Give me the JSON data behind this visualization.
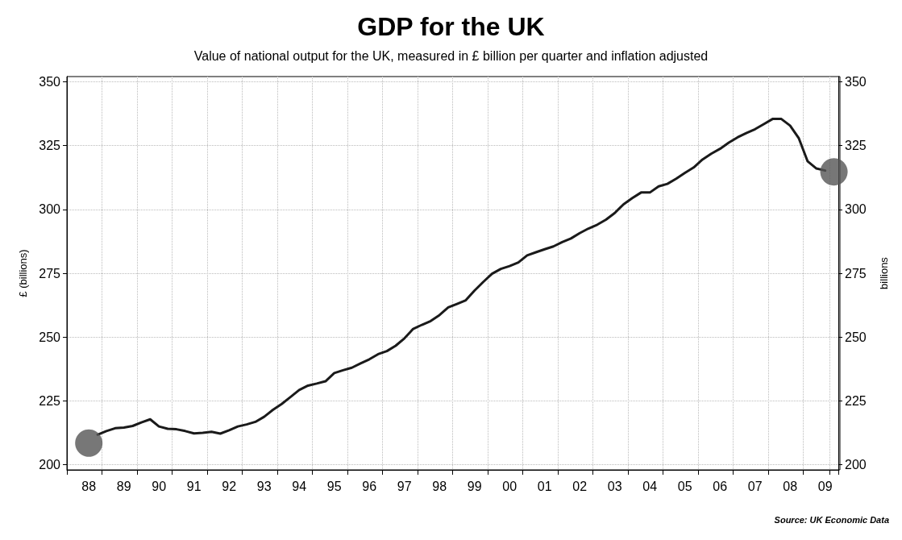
{
  "chart_data": {
    "type": "line",
    "title": "GDP for the UK",
    "subtitle": "Value of national output for the UK, measured in £ billion per quarter and inflation adjusted",
    "ylabel": "£ (billions)",
    "y2label": "billions",
    "annotations": [
      "Source: UK Economic Data"
    ],
    "categories": [
      null,
      null,
      "88",
      null,
      null,
      null,
      "89",
      null,
      null,
      null,
      "90",
      null,
      null,
      null,
      "91",
      null,
      null,
      null,
      "92",
      null,
      null,
      null,
      "93",
      null,
      null,
      null,
      "94",
      null,
      null,
      null,
      "95",
      null,
      null,
      null,
      "96",
      null,
      null,
      null,
      "97",
      null,
      null,
      null,
      "98",
      null,
      null,
      null,
      "99",
      null,
      null,
      null,
      "00",
      null,
      null,
      null,
      "01",
      null,
      null,
      null,
      "02",
      null,
      null,
      null,
      "03",
      null,
      null,
      null,
      "04",
      null,
      null,
      null,
      "05",
      null,
      null,
      null,
      "06",
      null,
      null,
      null,
      "07",
      null,
      null,
      null,
      "08",
      null,
      null,
      null,
      "09",
      null
    ],
    "ylim": [
      198,
      352
    ],
    "yticks": [
      200,
      225,
      250,
      275,
      300,
      325,
      350
    ],
    "y2lim": [
      198,
      352
    ],
    "y2ticks": [
      200,
      225,
      250,
      275,
      300,
      325,
      350
    ],
    "grid": true,
    "line_style": "solid",
    "series": [
      {
        "color": "#1a1a1a",
        "marker": "none",
        "values": [
          null,
          null,
          null,
          211.8,
          213.2,
          214.3,
          214.6,
          215.2,
          216.6,
          217.8,
          215,
          214.1,
          213.9,
          213.2,
          212.3,
          212.5,
          212.9,
          212.2,
          213.5,
          215,
          215.8,
          216.8,
          218.8,
          221.5,
          223.8,
          226.5,
          229.3,
          231,
          231.8,
          232.7,
          235.9,
          237,
          238,
          239.7,
          241.3,
          243.3,
          244.5,
          246.6,
          249.5,
          253.2,
          254.8,
          256.3,
          258.6,
          261.6,
          263,
          264.4,
          268.2,
          271.6,
          274.8,
          276.7,
          277.8,
          279.2,
          282,
          283.2,
          284.4,
          285.5,
          287.2,
          288.6,
          290.7,
          292.5,
          294,
          296,
          298.6,
          302,
          304.4,
          306.6,
          306.6,
          309,
          310,
          312,
          314.3,
          316.4,
          319.5,
          321.8,
          323.7,
          326.1,
          328.2,
          329.9,
          331.4,
          333.4,
          335.4,
          335.4,
          332.8,
          327.8,
          318.8,
          316,
          315.2,
          null
        ]
      },
      {
        "type": "scatter",
        "color": "#555555",
        "marker": "circle",
        "values": [
          null,
          null,
          208.5,
          null,
          null,
          null,
          null,
          null,
          null,
          null,
          null,
          null,
          null,
          null,
          null,
          null,
          null,
          null,
          null,
          null,
          null,
          null,
          null,
          null,
          null,
          null,
          null,
          null,
          null,
          null,
          null,
          null,
          null,
          null,
          null,
          null,
          null,
          null,
          null,
          null,
          null,
          null,
          null,
          null,
          null,
          null,
          null,
          null,
          null,
          null,
          null,
          null,
          null,
          null,
          null,
          null,
          null,
          null,
          null,
          null,
          null,
          null,
          null,
          null,
          null,
          null,
          null,
          null,
          null,
          null,
          null,
          null,
          null,
          null,
          null,
          null,
          null,
          null,
          null,
          null,
          null,
          null,
          null,
          null,
          null,
          null,
          null,
          314.7
        ]
      }
    ]
  }
}
